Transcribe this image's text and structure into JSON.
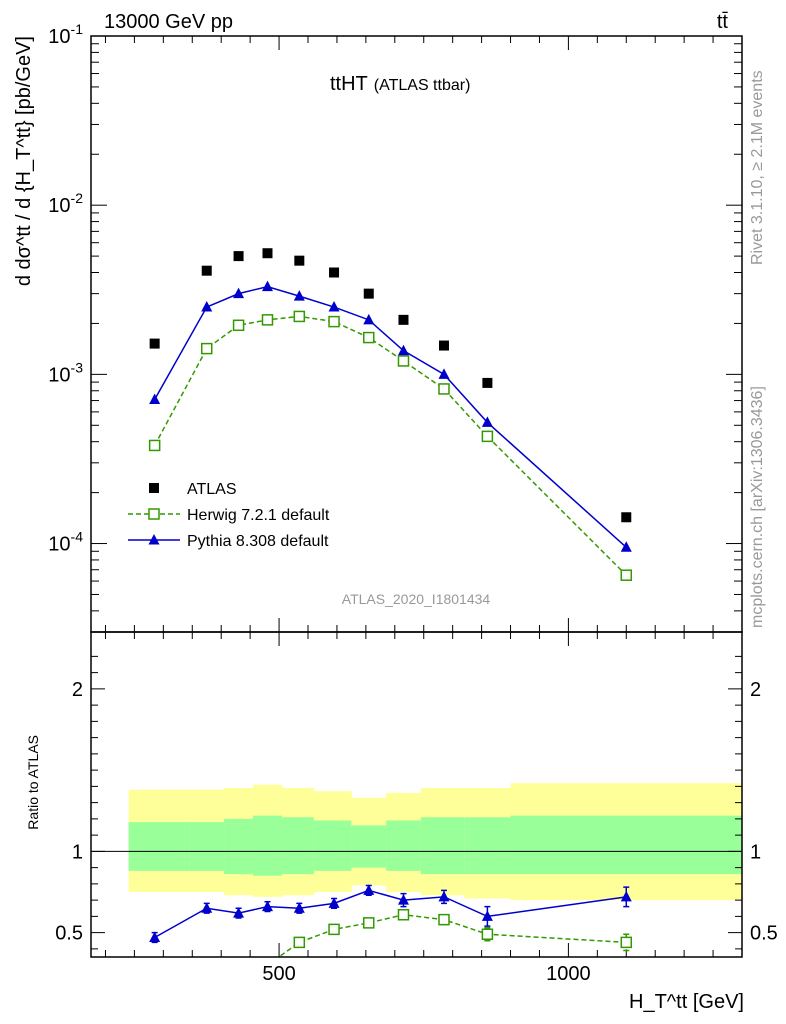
{
  "header": {
    "energy_label": "13000 GeV pp",
    "process_label": "tt̄",
    "side_label_top": "Rivet 3.1.10, ≥ 2.1M events",
    "side_label_bottom": "mcplots.cern.ch [arXiv:1306.3436]"
  },
  "chart_data": [
    {
      "type": "line",
      "panel": "main",
      "title_main": "ttHT",
      "title_suffix": "(ATLAS ttbar)",
      "analysis_label": "ATLAS_2020_I1801434",
      "ylabel": "d dσ^tt / d {H_T^tt} [pb/GeV]",
      "yscale": "log",
      "ylim": [
        3e-05,
        0.1
      ],
      "xlim": [
        175,
        1300
      ],
      "y_tick_labels": [
        "10^-4",
        "10^-3",
        "10^-2",
        "10^-1"
      ],
      "legend_position": "bottom-left",
      "x": [
        285,
        375,
        430,
        480,
        535,
        595,
        655,
        715,
        785,
        860,
        1100
      ],
      "series": [
        {
          "name": "ATLAS",
          "color": "#000000",
          "marker": "square",
          "values": [
            0.00152,
            0.0041,
            0.005,
            0.0052,
            0.0047,
            0.004,
            0.003,
            0.0021,
            0.00148,
            0.00089,
            0.000143
          ]
        },
        {
          "name": "Herwig 7.2.1 default",
          "color": "#339900",
          "marker": "open-square",
          "dashed": true,
          "values": [
            0.00038,
            0.00142,
            0.00195,
            0.0021,
            0.0022,
            0.00205,
            0.00165,
            0.0012,
            0.00082,
            0.00043,
            6.5e-05
          ]
        },
        {
          "name": "Pythia 8.308 default",
          "color": "#0000cc",
          "marker": "triangle",
          "values": [
            0.00071,
            0.0025,
            0.003,
            0.0033,
            0.0029,
            0.0025,
            0.0021,
            0.00138,
            0.001,
            0.00052,
            9.5e-05
          ]
        }
      ]
    },
    {
      "type": "line",
      "panel": "ratio",
      "ylabel": "Ratio to ATLAS",
      "xlabel": "H_T^tt [GeV]",
      "ylim": [
        0.35,
        2.35
      ],
      "xlim": [
        175,
        1300
      ],
      "y_tick_labels": [
        "0.5",
        "1",
        "2"
      ],
      "x_tick_labels": [
        "500",
        "1000"
      ],
      "band_edges": [
        240,
        345,
        405,
        455,
        505,
        560,
        625,
        685,
        745,
        820,
        900,
        1300
      ],
      "band_inner_upper": [
        1.18,
        1.18,
        1.2,
        1.22,
        1.21,
        1.19,
        1.16,
        1.19,
        1.21,
        1.21,
        1.22
      ],
      "band_inner_lower": [
        0.88,
        0.88,
        0.86,
        0.85,
        0.86,
        0.88,
        0.9,
        0.88,
        0.86,
        0.86,
        0.86
      ],
      "band_outer_upper": [
        1.38,
        1.38,
        1.39,
        1.41,
        1.39,
        1.37,
        1.33,
        1.36,
        1.39,
        1.39,
        1.42
      ],
      "band_outer_lower": [
        0.75,
        0.75,
        0.73,
        0.72,
        0.73,
        0.75,
        0.79,
        0.75,
        0.73,
        0.71,
        0.7
      ],
      "series": [
        {
          "name": "Pythia 8.308 default",
          "color": "#0000cc",
          "marker": "triangle",
          "x": [
            285,
            375,
            430,
            480,
            535,
            595,
            655,
            715,
            785,
            860,
            1100
          ],
          "values": [
            0.47,
            0.65,
            0.62,
            0.66,
            0.65,
            0.68,
            0.76,
            0.7,
            0.72,
            0.6,
            0.72
          ],
          "errors": [
            0.03,
            0.03,
            0.03,
            0.03,
            0.03,
            0.03,
            0.03,
            0.04,
            0.04,
            0.06,
            0.06
          ]
        },
        {
          "name": "Herwig 7.2.1 default",
          "color": "#339900",
          "marker": "open-square",
          "dashed": true,
          "x": [
            480,
            535,
            595,
            655,
            715,
            785,
            860,
            1100
          ],
          "values": [
            0.3,
            0.44,
            0.52,
            0.56,
            0.61,
            0.58,
            0.49,
            0.44
          ],
          "errors": [
            0.02,
            0.02,
            0.02,
            0.02,
            0.03,
            0.03,
            0.04,
            0.05
          ]
        }
      ]
    }
  ]
}
